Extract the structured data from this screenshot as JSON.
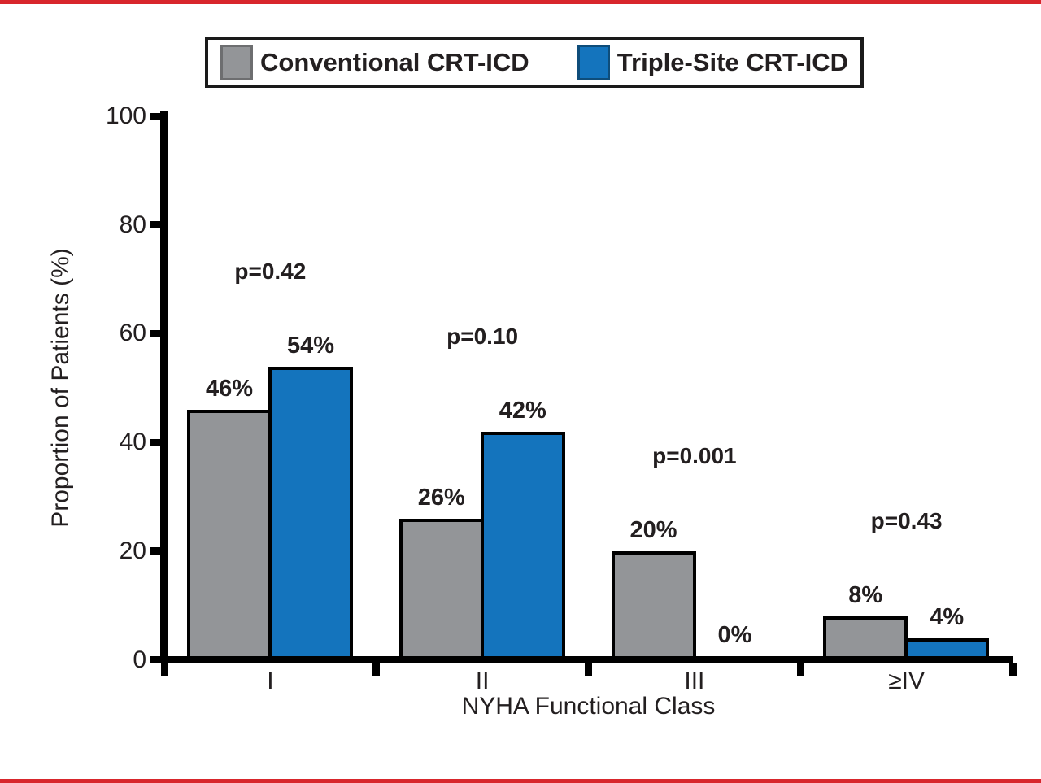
{
  "frame": {
    "rule_color": "#d8262c",
    "background": "#ffffff"
  },
  "legend": {
    "items": [
      {
        "label": "Conventional CRT-ICD",
        "color": "#939598",
        "swatch_border": "#6d6e70"
      },
      {
        "label": "Triple-Site CRT-ICD",
        "color": "#1474bd",
        "swatch_border": "#0e4d7a"
      }
    ]
  },
  "chart_data": {
    "type": "bar",
    "categories": [
      "I",
      "II",
      "III",
      "≥IV"
    ],
    "series": [
      {
        "name": "Conventional CRT-ICD",
        "color": "#939598",
        "values": [
          46,
          26,
          20,
          8
        ],
        "labels": [
          "46%",
          "26%",
          "20%",
          "8%"
        ]
      },
      {
        "name": "Triple-Site CRT-ICD",
        "color": "#1474bd",
        "values": [
          54,
          42,
          0,
          4
        ],
        "labels": [
          "54%",
          "42%",
          "0%",
          "4%"
        ]
      }
    ],
    "p_values": [
      "p=0.42",
      "p=0.10",
      "p=0.001",
      "p=0.43"
    ],
    "xlabel": "NYHA Functional Class",
    "ylabel": "Proportion of Patients (%)",
    "ylim": [
      0,
      100
    ],
    "yticks": [
      0,
      20,
      40,
      60,
      80,
      100
    ],
    "grid": false,
    "legend_position": "top",
    "axis_color": "#000000",
    "bar_border_color": "#000000"
  }
}
